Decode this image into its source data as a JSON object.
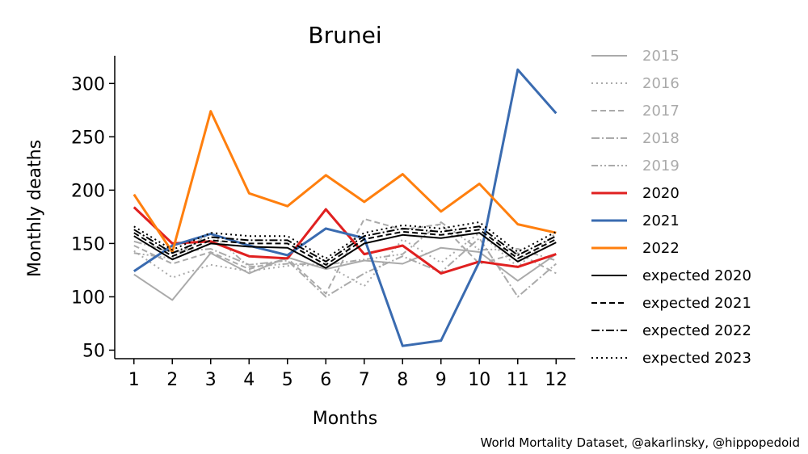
{
  "chart_data": {
    "type": "line",
    "title": "Brunei",
    "xlabel": "Months",
    "ylabel": "Monthly deaths",
    "x": [
      1,
      2,
      3,
      4,
      5,
      6,
      7,
      8,
      9,
      10,
      11,
      12
    ],
    "xlim": [
      0.5,
      12.5
    ],
    "ylim": [
      42,
      326
    ],
    "yticks": [
      50,
      100,
      150,
      200,
      250,
      300
    ],
    "grid": false,
    "legend_position": "right",
    "series": [
      {
        "name": "2015",
        "color": "#aaaaaa",
        "dash": "solid",
        "width": 2,
        "values": [
          121,
          97,
          141,
          122,
          137,
          126,
          134,
          131,
          146,
          142,
          115,
          140
        ]
      },
      {
        "name": "2016",
        "color": "#aaaaaa",
        "dash": "dotted",
        "width": 2,
        "values": [
          143,
          118,
          130,
          124,
          129,
          130,
          110,
          154,
          132,
          160,
          128,
          160
        ]
      },
      {
        "name": "2017",
        "color": "#aaaaaa",
        "dash": "dashed",
        "width": 2,
        "values": [
          148,
          131,
          142,
          126,
          136,
          103,
          173,
          163,
          168,
          131,
          141,
          122
        ]
      },
      {
        "name": "2018",
        "color": "#aaaaaa",
        "dash": "dashdot",
        "width": 2,
        "values": [
          152,
          142,
          145,
          130,
          134,
          100,
          122,
          138,
          123,
          155,
          100,
          131
        ]
      },
      {
        "name": "2019",
        "color": "#aaaaaa",
        "dash": "dashdotdot",
        "width": 2,
        "values": [
          141,
          136,
          160,
          128,
          131,
          130,
          135,
          140,
          170,
          144,
          145,
          134
        ]
      },
      {
        "name": "2020",
        "color": "#e02020",
        "dash": "solid",
        "width": 3,
        "values": [
          184,
          150,
          152,
          138,
          136,
          182,
          140,
          148,
          122,
          133,
          128,
          140
        ]
      },
      {
        "name": "2021",
        "color": "#3a6bb0",
        "dash": "solid",
        "width": 3,
        "values": [
          124,
          148,
          159,
          148,
          139,
          164,
          155,
          54,
          59,
          133,
          313,
          272
        ]
      },
      {
        "name": "2022",
        "color": "#ff7f0e",
        "dash": "solid",
        "width": 3,
        "values": [
          196,
          142,
          274,
          197,
          185,
          214,
          189,
          215,
          180,
          206,
          168,
          160
        ]
      },
      {
        "name": "expected 2020",
        "color": "#000000",
        "dash": "solid",
        "width": 2,
        "values": [
          157,
          135,
          150,
          147,
          146,
          127,
          150,
          158,
          155,
          160,
          133,
          151
        ]
      },
      {
        "name": "expected 2021",
        "color": "#000000",
        "dash": "dashed",
        "width": 2,
        "values": [
          160,
          138,
          153,
          150,
          150,
          130,
          154,
          161,
          158,
          163,
          136,
          154
        ]
      },
      {
        "name": "expected 2022",
        "color": "#000000",
        "dash": "dashdot",
        "width": 2,
        "values": [
          163,
          141,
          156,
          153,
          153,
          133,
          157,
          164,
          161,
          166,
          139,
          157
        ]
      },
      {
        "name": "expected 2023",
        "color": "#000000",
        "dash": "dotted",
        "width": 2,
        "values": [
          166,
          144,
          160,
          157,
          157,
          136,
          160,
          167,
          164,
          170,
          142,
          161
        ]
      }
    ],
    "credit": "World Mortality Dataset, @akarlinsky, @hippopedoid"
  }
}
